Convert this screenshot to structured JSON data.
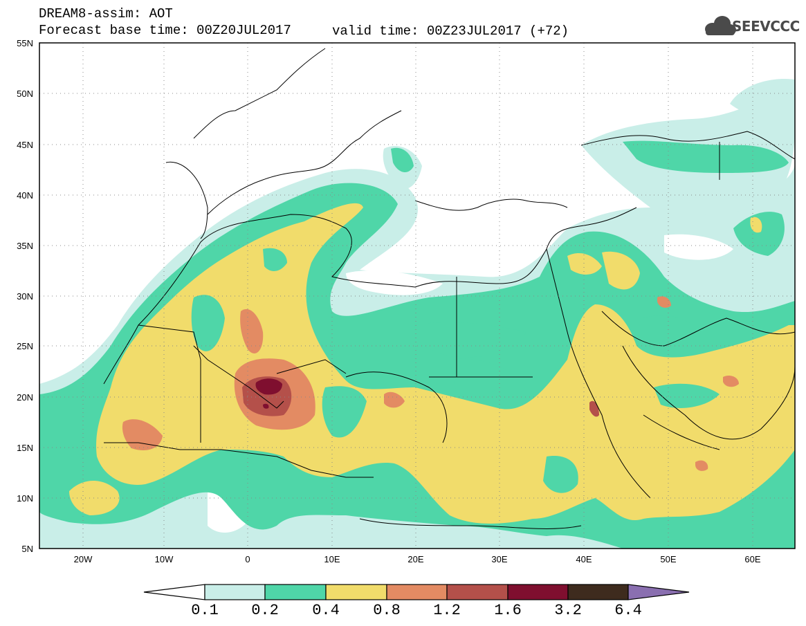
{
  "header": {
    "title": "DREAM8-assim: AOT",
    "base_time": "Forecast base time: 00Z20JUL2017",
    "valid_time": "valid time: 00Z23JUL2017 (+72)",
    "logo_text": "SEEVCCC"
  },
  "map": {
    "lat_labels": [
      "55N",
      "50N",
      "45N",
      "40N",
      "35N",
      "30N",
      "25N",
      "20N",
      "15N",
      "10N",
      "5N"
    ],
    "lon_labels": [
      "20W",
      "10W",
      "0",
      "10E",
      "20E",
      "30E",
      "40E",
      "50E",
      "60E"
    ],
    "extent": {
      "lon_min": -25,
      "lon_max": 65,
      "lat_min": 5,
      "lat_max": 55
    }
  },
  "colorbar": {
    "labels": [
      "0.1",
      "0.2",
      "0.4",
      "0.8",
      "1.2",
      "1.6",
      "3.2",
      "6.4"
    ],
    "colors": [
      "#ffffff",
      "#c9eee8",
      "#4fd6a8",
      "#f1dc6b",
      "#e38b63",
      "#b4504a",
      "#7f0f2f",
      "#3e2b1e",
      "#8a6fb0"
    ]
  },
  "colors": {
    "level_02": "#c9eee8",
    "level_04": "#4fd6a8",
    "level_08": "#f1dc6b",
    "level_12": "#e38b63",
    "level_16": "#b4504a",
    "level_32": "#7f0f2f"
  }
}
